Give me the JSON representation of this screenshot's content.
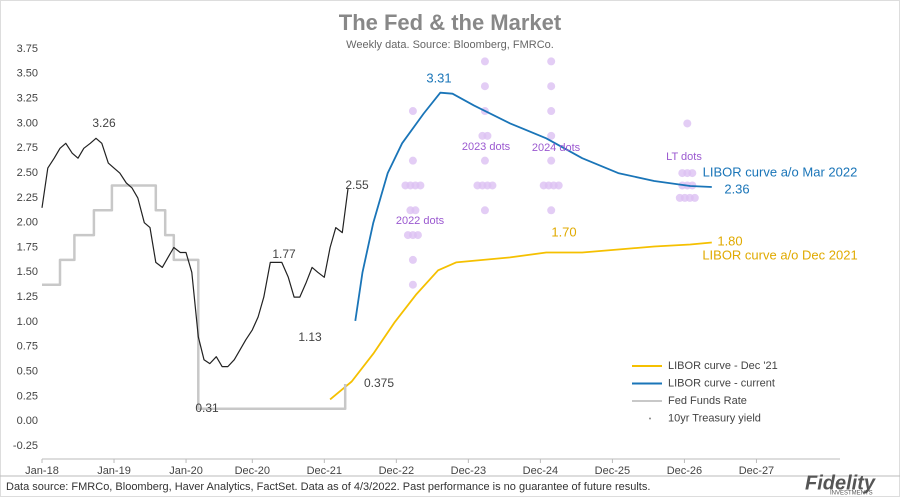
{
  "chart_data": {
    "type": "line",
    "title": "The Fed & the Market",
    "subtitle": "Weekly data.  Source: Bloomberg, FMRCo.",
    "footer": "Data source: FMRCo, Bloomberg, Haver Analytics, FactSet. Data as of 4/3/2022. Past performance is no guarantee of future results.",
    "logo": "Fidelity",
    "logo_sub": "INVESTMENTS",
    "xlim": [
      2018,
      2029.08
    ],
    "xticks": [
      {
        "value": 2018,
        "label": "Jan-18"
      },
      {
        "value": 2019,
        "label": "Jan-19"
      },
      {
        "value": 2020,
        "label": "Jan-20"
      },
      {
        "value": 2020.92,
        "label": "Dec-20"
      },
      {
        "value": 2021.92,
        "label": "Dec-21"
      },
      {
        "value": 2022.92,
        "label": "Dec-22"
      },
      {
        "value": 2023.92,
        "label": "Dec-23"
      },
      {
        "value": 2024.92,
        "label": "Dec-24"
      },
      {
        "value": 2025.92,
        "label": "Dec-25"
      },
      {
        "value": 2026.92,
        "label": "Dec-26"
      },
      {
        "value": 2027.92,
        "label": "Dec-27"
      }
    ],
    "ylim": [
      -0.25,
      3.75
    ],
    "yticks": [
      -0.25,
      {
        "value": 0,
        "label": "0.00"
      },
      0.25,
      {
        "value": 0.5,
        "label": "0.50"
      },
      0.75,
      {
        "value": 1,
        "label": "1.00"
      },
      1.25,
      {
        "value": 1.5,
        "label": "1.50"
      },
      1.75,
      {
        "value": 2,
        "label": "2.00"
      },
      2.25,
      {
        "value": 2.5,
        "label": "2.50"
      },
      2.75,
      {
        "value": 3,
        "label": "3.00"
      },
      3.25,
      {
        "value": 3.5,
        "label": "3.50"
      },
      3.75
    ],
    "grid": false,
    "legend": "lower right",
    "series": [
      {
        "name": "LIBOR curve - Dec '21",
        "color": "#f5c000",
        "style": "line",
        "x": [
          2022.0,
          2022.3,
          2022.6,
          2022.9,
          2023.2,
          2023.5,
          2023.75,
          2024.5,
          2025.0,
          2025.5,
          2026.0,
          2026.5,
          2027.0,
          2027.3
        ],
        "values": [
          0.22,
          0.4,
          0.68,
          1.0,
          1.28,
          1.52,
          1.6,
          1.65,
          1.7,
          1.7,
          1.73,
          1.76,
          1.78,
          1.8
        ]
      },
      {
        "name": "LIBOR curve - current",
        "color": "#1a75b8",
        "style": "line",
        "x": [
          2022.35,
          2022.45,
          2022.6,
          2022.8,
          2023.0,
          2023.3,
          2023.53,
          2023.7,
          2024.0,
          2024.5,
          2025.0,
          2025.5,
          2026.0,
          2026.5,
          2027.0,
          2027.3
        ],
        "values": [
          1.01,
          1.5,
          2.0,
          2.5,
          2.8,
          3.1,
          3.31,
          3.3,
          3.18,
          3.0,
          2.85,
          2.65,
          2.5,
          2.42,
          2.37,
          2.36
        ]
      },
      {
        "name": "Fed Funds Rate",
        "color": "#c8c8c8",
        "style": "line",
        "x": [
          2018.0,
          2018.25,
          2018.25,
          2018.45,
          2018.45,
          2018.72,
          2018.72,
          2018.97,
          2018.97,
          2019.58,
          2019.58,
          2019.71,
          2019.71,
          2019.83,
          2019.83,
          2020.17,
          2020.17,
          2022.21,
          2022.21
        ],
        "values": [
          1.375,
          1.375,
          1.625,
          1.625,
          1.875,
          1.875,
          2.125,
          2.125,
          2.375,
          2.375,
          2.125,
          2.125,
          1.875,
          1.875,
          1.625,
          1.625,
          0.125,
          0.125,
          0.375
        ]
      },
      {
        "name": "10yr Treasury yield",
        "color": "#222222",
        "style": "jagged",
        "x": [
          2018.0,
          2018.08,
          2018.17,
          2018.25,
          2018.33,
          2018.42,
          2018.5,
          2018.58,
          2018.67,
          2018.75,
          2018.83,
          2018.92,
          2019.0,
          2019.08,
          2019.17,
          2019.25,
          2019.33,
          2019.42,
          2019.5,
          2019.58,
          2019.67,
          2019.75,
          2019.83,
          2019.92,
          2020.0,
          2020.08,
          2020.17,
          2020.25,
          2020.33,
          2020.42,
          2020.5,
          2020.58,
          2020.67,
          2020.75,
          2020.83,
          2020.92,
          2021.0,
          2021.08,
          2021.17,
          2021.25,
          2021.33,
          2021.42,
          2021.5,
          2021.58,
          2021.67,
          2021.75,
          2021.83,
          2021.92,
          2022.0,
          2022.08,
          2022.17,
          2022.25
        ],
        "values": [
          2.15,
          2.55,
          2.65,
          2.75,
          2.8,
          2.7,
          2.65,
          2.75,
          2.8,
          2.85,
          2.8,
          2.6,
          2.55,
          2.5,
          2.4,
          2.35,
          2.25,
          2.0,
          1.95,
          1.6,
          1.55,
          1.65,
          1.75,
          1.7,
          1.7,
          1.5,
          0.85,
          0.62,
          0.58,
          0.65,
          0.55,
          0.55,
          0.62,
          0.72,
          0.82,
          0.92,
          1.05,
          1.25,
          1.6,
          1.6,
          1.6,
          1.45,
          1.25,
          1.25,
          1.4,
          1.55,
          1.5,
          1.45,
          1.75,
          1.95,
          1.9,
          2.35
        ]
      }
    ],
    "dot_color": "#dcc0f2",
    "dots": [
      {
        "label": "2022 dots",
        "x": 2023.15,
        "levels": [
          1.375,
          1.625,
          1.875,
          2.125,
          2.375,
          2.625,
          3.125
        ],
        "counts": [
          1,
          1,
          3,
          2,
          4,
          1,
          1
        ]
      },
      {
        "label": "2023 dots",
        "x": 2024.15,
        "levels": [
          2.125,
          2.375,
          2.625,
          2.875,
          3.125,
          3.375,
          3.625
        ],
        "counts": [
          1,
          4,
          1,
          2,
          1,
          1,
          1
        ]
      },
      {
        "label": "2024 dots",
        "x": 2025.07,
        "levels": [
          2.125,
          2.375,
          2.625,
          2.875,
          3.125,
          3.375,
          3.625
        ],
        "counts": [
          1,
          4,
          1,
          1,
          1,
          1,
          1
        ]
      },
      {
        "label": "LT dots",
        "x": 2026.96,
        "levels": [
          2.25,
          2.375,
          2.5,
          3.0
        ],
        "counts": [
          4,
          3,
          3,
          1
        ]
      }
    ],
    "annotations": [
      "3.26",
      "1.77",
      "1.13",
      "0.31",
      "2.55",
      "0.375",
      "3.31",
      "2.36",
      "1.70",
      "1.80",
      "LIBOR curve a/o Mar 2022",
      "LIBOR curve a/o Dec 2021"
    ]
  }
}
